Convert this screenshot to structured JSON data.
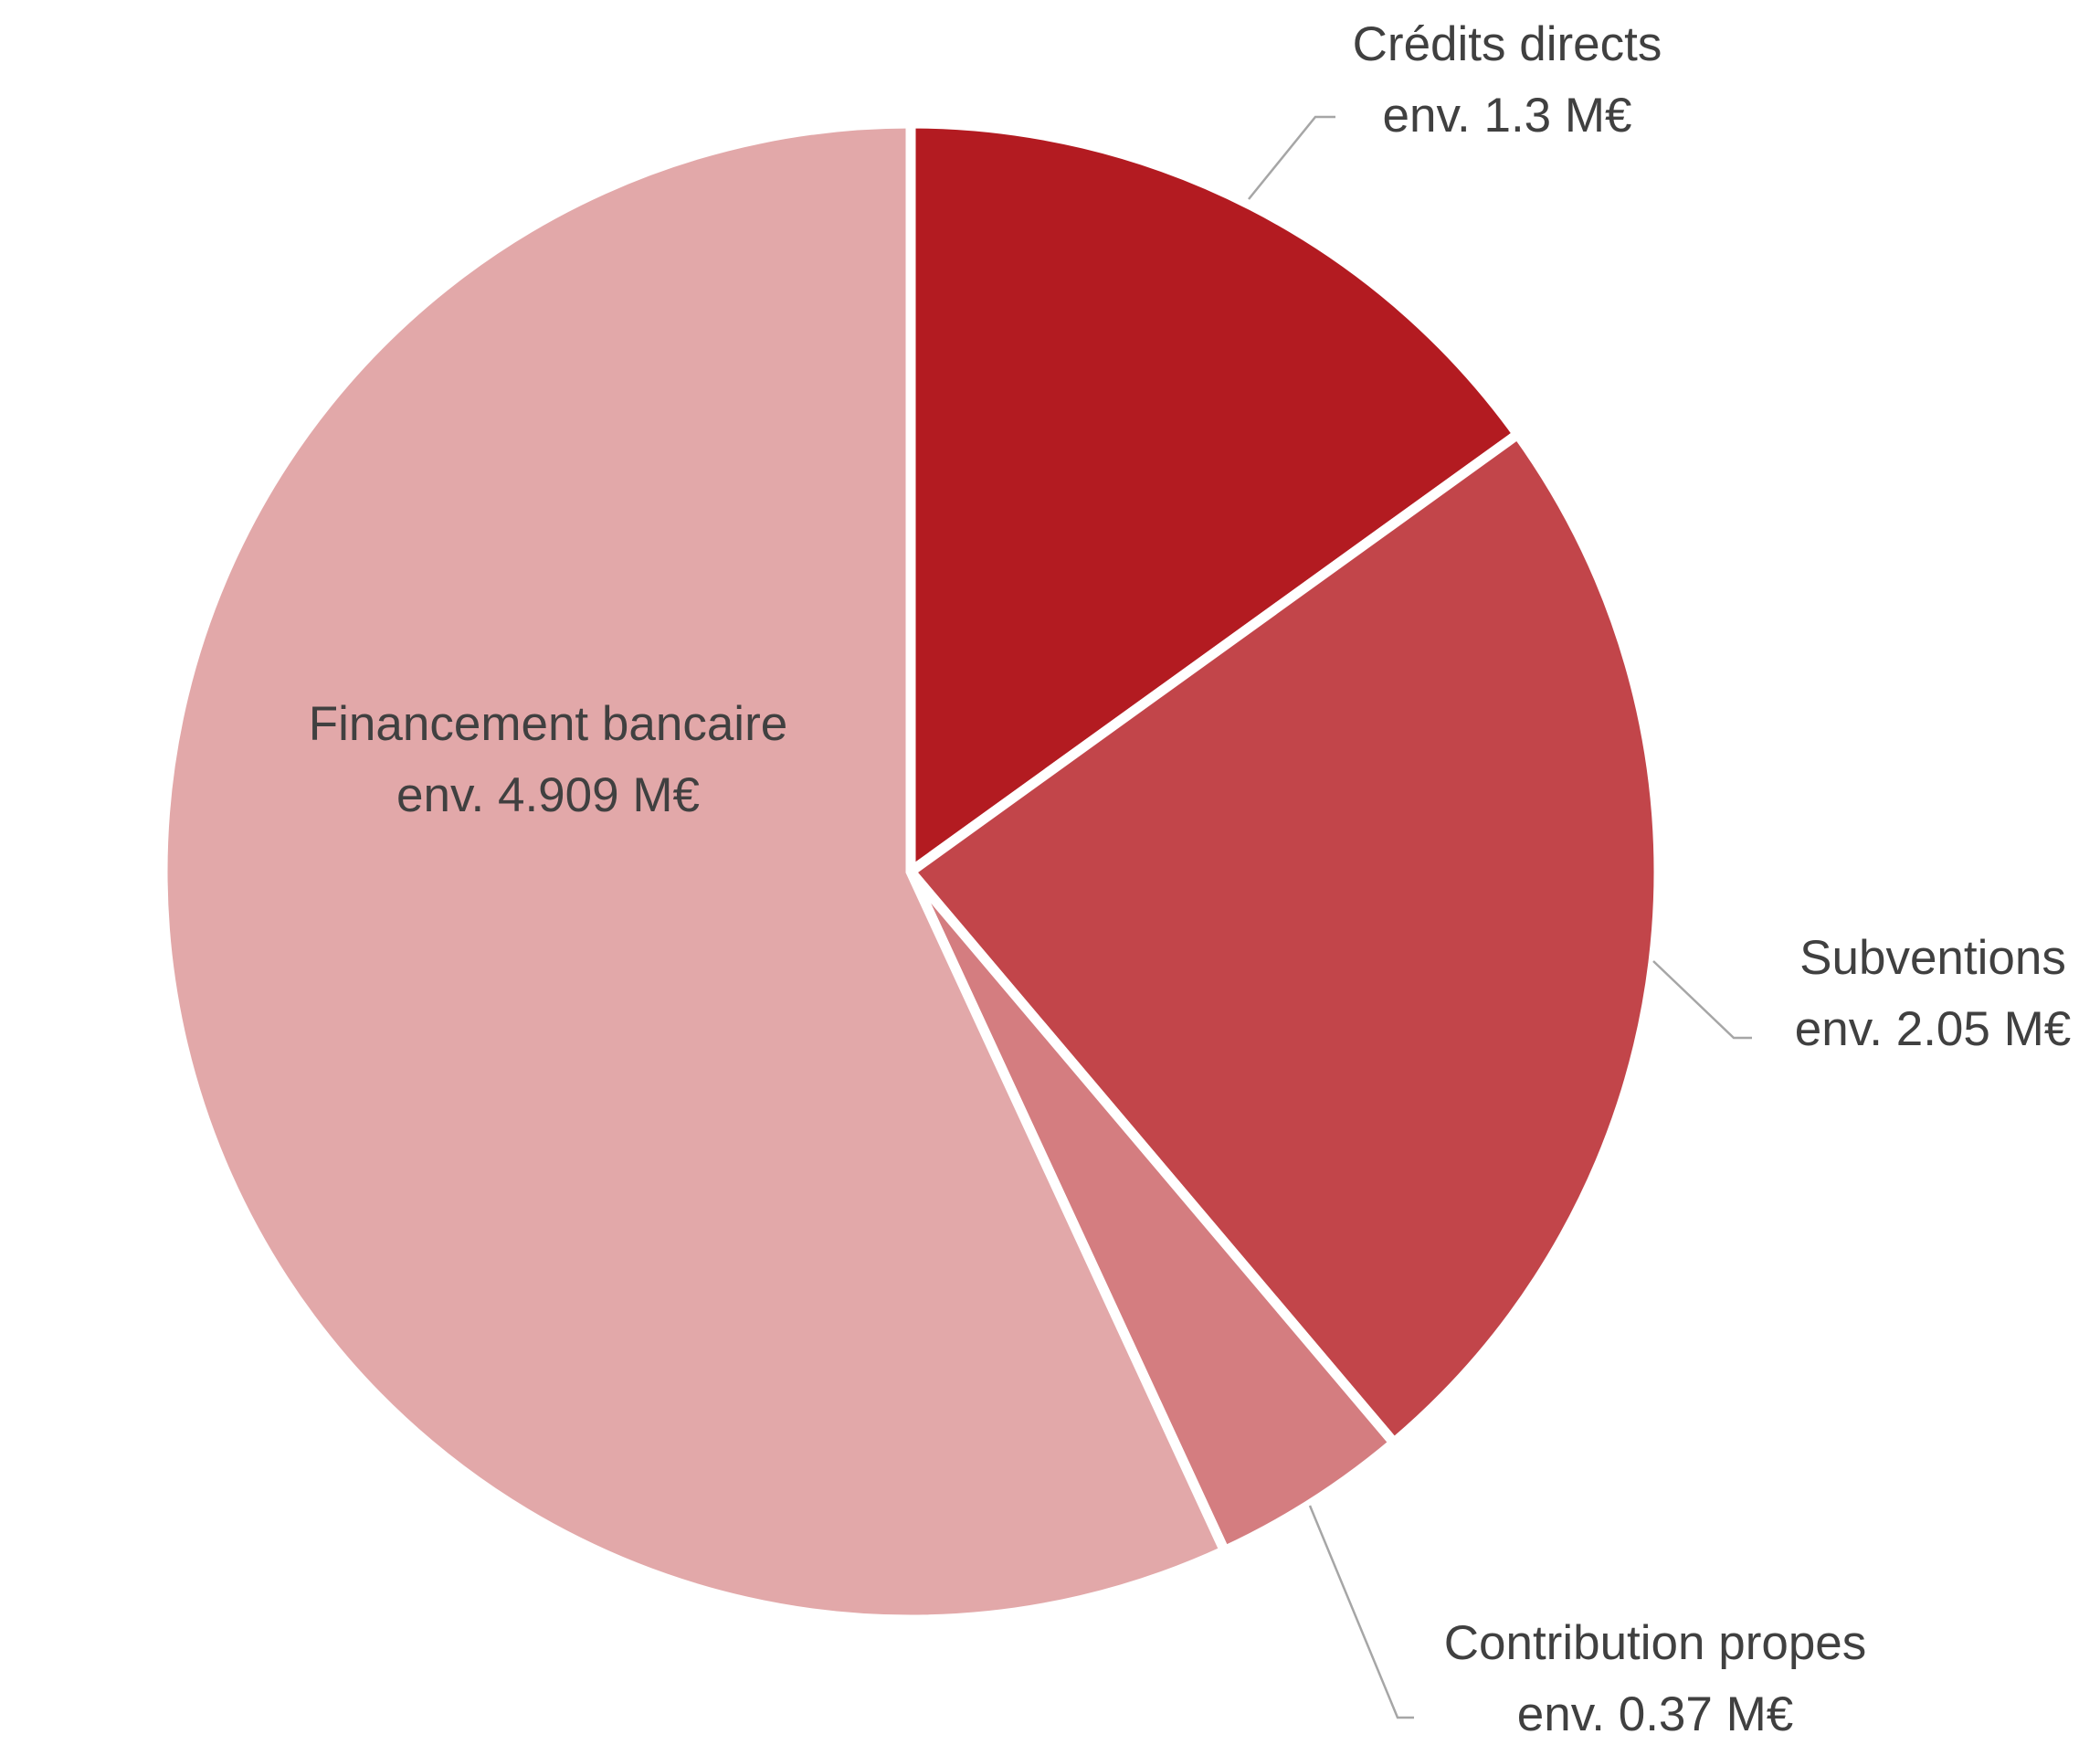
{
  "chart_data": {
    "type": "pie",
    "unit": "M€",
    "slices": [
      {
        "label": "Crédits directs",
        "value_text": "env. 1.3 M€",
        "value": 1.3,
        "color": "#b31b21"
      },
      {
        "label": "Subventions",
        "value_text": "env. 2.05 M€",
        "value": 2.05,
        "color": "#c2454a"
      },
      {
        "label": "Contribution propes",
        "value_text": "env. 0.37 M€",
        "value": 0.37,
        "color": "#d47d80"
      },
      {
        "label": "Financement bancaire",
        "value_text": "env. 4.909 M€",
        "value": 4.909,
        "color": "#e2a8a9"
      }
    ],
    "start_angle_deg": 0,
    "direction": "clockwise"
  }
}
